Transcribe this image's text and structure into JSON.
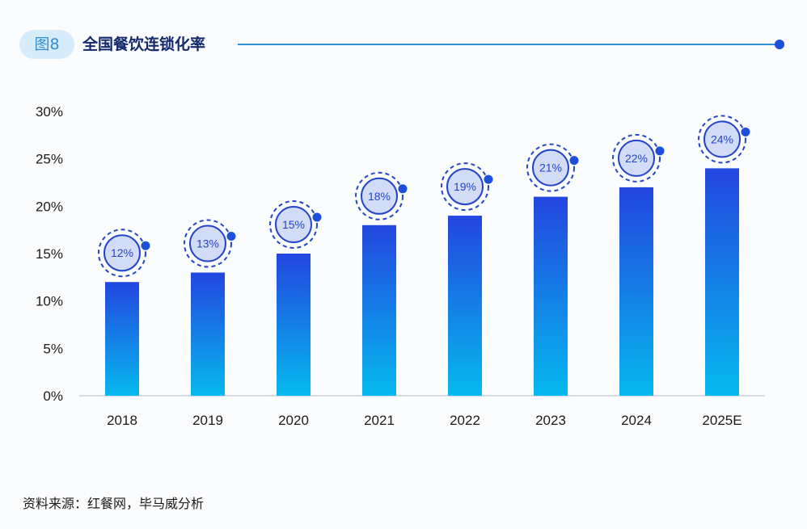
{
  "header": {
    "figure_label": "图8",
    "title": "全国餐饮连锁化率"
  },
  "source": "资料来源：红餐网，毕马威分析",
  "colors": {
    "bar_top": "#2346df",
    "bar_bottom": "#06b9ee",
    "accent": "#2f8fd6",
    "bubble_fill": "#d3dcf7",
    "bubble_stroke": "#2346c8",
    "title": "#122a6b"
  },
  "chart_data": {
    "type": "bar",
    "categories": [
      "2018",
      "2019",
      "2020",
      "2021",
      "2022",
      "2023",
      "2024",
      "2025E"
    ],
    "values": [
      12,
      13,
      15,
      18,
      19,
      21,
      22,
      24
    ],
    "data_labels": [
      "12%",
      "13%",
      "15%",
      "18%",
      "19%",
      "21%",
      "22%",
      "24%"
    ],
    "y_ticks": [
      "0%",
      "5%",
      "10%",
      "15%",
      "20%",
      "25%",
      "30%"
    ],
    "ylim": [
      0,
      30
    ],
    "grid": false,
    "legend": "none"
  }
}
